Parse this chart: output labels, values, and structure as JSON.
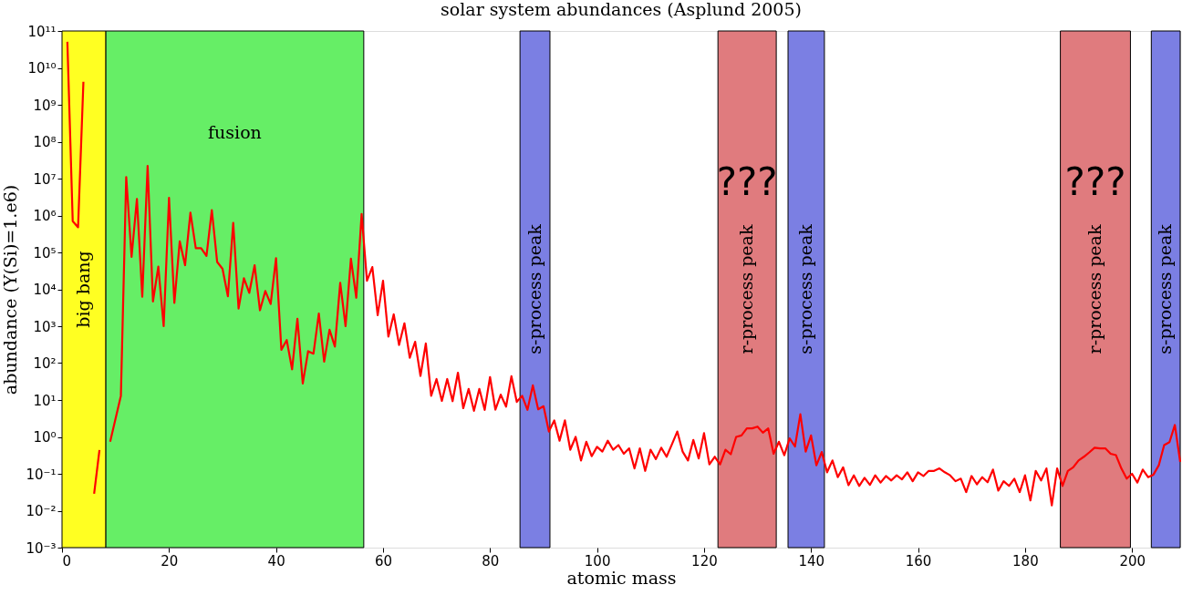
{
  "chart_data": {
    "type": "line",
    "title": "solar system abundances (Asplund 2005)",
    "xlabel": "atomic mass",
    "ylabel": "abundance (Y(Si)=1.e6)",
    "log": "y",
    "grid": false,
    "marker": "none",
    "line_style": "solid",
    "xlim": [
      0,
      209
    ],
    "xticks": [
      0,
      20,
      40,
      60,
      80,
      100,
      120,
      140,
      160,
      180,
      200
    ],
    "ylim": [
      0.001,
      100000000000.0
    ],
    "yticks": [
      {
        "value": 0.001,
        "label": "10⁻³"
      },
      {
        "value": 0.01,
        "label": "10⁻²"
      },
      {
        "value": 0.1,
        "label": "10⁻¹"
      },
      {
        "value": 1,
        "label": "10⁰"
      },
      {
        "value": 10,
        "label": "10¹"
      },
      {
        "value": 100,
        "label": "10²"
      },
      {
        "value": 1000,
        "label": "10³"
      },
      {
        "value": 10000,
        "label": "10⁴"
      },
      {
        "value": 100000,
        "label": "10⁵"
      },
      {
        "value": 1000000,
        "label": "10⁶"
      },
      {
        "value": 10000000,
        "label": "10⁷"
      },
      {
        "value": 100000000,
        "label": "10⁸"
      },
      {
        "value": 1000000000,
        "label": "10⁹"
      },
      {
        "value": 10000000000,
        "label": "10¹⁰"
      },
      {
        "value": 100000000000,
        "label": "10¹¹"
      }
    ],
    "bands": [
      {
        "axis": "x",
        "from": 0,
        "to": 8.2,
        "label": "big bang",
        "color": "#ffff22"
      },
      {
        "axis": "x",
        "from": 8.2,
        "to": 56.4,
        "label": "fusion",
        "color": "#66ee66"
      },
      {
        "axis": "x",
        "from": 85.6,
        "to": 91.2,
        "label": "s-process peak",
        "color": "#7b7fe3"
      },
      {
        "axis": "x",
        "from": 122.6,
        "to": 133.5,
        "label": "r-process peak",
        "color": "#e07b7e"
      },
      {
        "axis": "x",
        "from": 135.7,
        "to": 142.5,
        "label": "s-process peak",
        "color": "#7b7fe3"
      },
      {
        "axis": "x",
        "from": 186.6,
        "to": 199.7,
        "label": "r-process peak",
        "color": "#e07b7e"
      },
      {
        "axis": "x",
        "from": 203.6,
        "to": 209,
        "label": "s-process peak",
        "color": "#7b7fe3"
      }
    ],
    "annotations": [
      "???",
      "???"
    ],
    "series": [
      {
        "color": "#ff0000",
        "x": [
          1,
          2,
          3,
          4,
          5,
          6,
          7,
          8,
          9,
          11,
          12,
          13,
          14,
          15,
          16,
          17,
          18,
          19,
          20,
          21,
          22,
          23,
          24,
          25,
          26,
          27,
          28,
          29,
          30,
          31,
          32,
          33,
          34,
          35,
          36,
          37,
          38,
          39,
          40,
          41,
          42,
          43,
          44,
          45,
          46,
          47,
          48,
          49,
          50,
          51,
          52,
          53,
          54,
          55,
          56,
          57,
          58,
          59,
          60,
          61,
          62,
          63,
          64,
          65,
          66,
          67,
          68,
          69,
          70,
          71,
          72,
          73,
          74,
          75,
          76,
          77,
          78,
          79,
          80,
          81,
          82,
          83,
          84,
          85,
          86,
          87,
          88,
          89,
          90,
          91,
          92,
          93,
          94,
          95,
          96,
          97,
          98,
          99,
          100,
          101,
          102,
          103,
          104,
          105,
          106,
          107,
          108,
          109,
          110,
          111,
          112,
          113,
          114,
          115,
          116,
          117,
          118,
          119,
          120,
          121,
          122,
          123,
          124,
          125,
          126,
          127,
          128,
          129,
          130,
          131,
          132,
          133,
          134,
          135,
          136,
          137,
          138,
          139,
          140,
          141,
          142,
          143,
          144,
          145,
          146,
          147,
          148,
          149,
          150,
          151,
          152,
          153,
          154,
          155,
          156,
          157,
          158,
          159,
          160,
          161,
          162,
          163,
          164,
          165,
          166,
          167,
          168,
          169,
          170,
          171,
          172,
          173,
          174,
          175,
          176,
          177,
          178,
          179,
          180,
          181,
          182,
          183,
          184,
          185,
          186,
          187,
          188,
          189,
          190,
          191,
          192,
          193,
          194,
          195,
          196,
          197,
          198,
          199,
          200,
          201,
          202,
          203,
          204,
          205,
          206,
          207,
          208,
          209
        ],
        "values": [
          51000000000.0,
          700000.0,
          480000.0,
          4200000000.0,
          null,
          0.029,
          0.44,
          null,
          0.74,
          13,
          11000000.0,
          76000.0,
          2800000.0,
          6300.0,
          22000000.0,
          4700.0,
          41000.0,
          1000.0,
          3000000.0,
          4300.0,
          200000.0,
          45000.0,
          1200000.0,
          130000.0,
          130000.0,
          80000.0,
          1400000.0,
          55000.0,
          36000.0,
          6500.0,
          630000.0,
          3000.0,
          20000.0,
          8000.0,
          45000.0,
          2700.0,
          9000.0,
          4000.0,
          70000.0,
          230,
          420,
          68,
          1600.0,
          28,
          210,
          180,
          2200.0,
          110,
          800,
          280,
          15000.0,
          1000.0,
          68000.0,
          5900.0,
          1100000.0,
          17000.0,
          40000.0,
          2000.0,
          17000.0,
          520,
          2100.0,
          310,
          1200.0,
          140,
          380,
          45,
          340,
          13,
          37,
          9.5,
          37,
          9.3,
          55,
          6,
          20,
          5.1,
          20,
          5.4,
          42,
          5.5,
          14,
          6.6,
          44,
          8.9,
          13,
          5.4,
          25,
          5.6,
          6.8,
          1.4,
          2.8,
          0.79,
          2.8,
          0.45,
          1,
          0.23,
          0.74,
          0.3,
          0.54,
          0.4,
          0.79,
          0.45,
          0.6,
          0.35,
          0.49,
          0.14,
          0.49,
          0.12,
          0.45,
          0.25,
          0.51,
          0.29,
          0.63,
          1.4,
          0.4,
          0.23,
          0.83,
          0.26,
          1.26,
          0.18,
          0.29,
          0.18,
          0.45,
          0.34,
          1,
          1.1,
          1.7,
          1.7,
          1.9,
          1.3,
          1.7,
          0.35,
          0.74,
          0.32,
          0.91,
          0.55,
          4.1,
          0.4,
          1.1,
          0.17,
          0.39,
          0.11,
          0.23,
          0.081,
          0.15,
          0.049,
          0.091,
          0.047,
          0.078,
          0.05,
          0.091,
          0.058,
          0.087,
          0.066,
          0.091,
          0.071,
          0.11,
          0.063,
          0.11,
          0.087,
          0.12,
          0.12,
          0.14,
          0.11,
          0.091,
          0.063,
          0.074,
          0.032,
          0.087,
          0.052,
          0.081,
          0.059,
          0.13,
          0.035,
          0.063,
          0.047,
          0.074,
          0.032,
          0.091,
          0.019,
          0.12,
          0.066,
          0.14,
          0.014,
          0.14,
          0.047,
          0.12,
          0.15,
          0.23,
          0.29,
          0.38,
          0.51,
          0.49,
          0.49,
          0.35,
          0.32,
          0.14,
          0.074,
          0.1,
          0.058,
          0.13,
          0.081,
          0.095,
          0.17,
          0.6,
          0.72,
          2.1,
          0.21
        ]
      }
    ]
  }
}
